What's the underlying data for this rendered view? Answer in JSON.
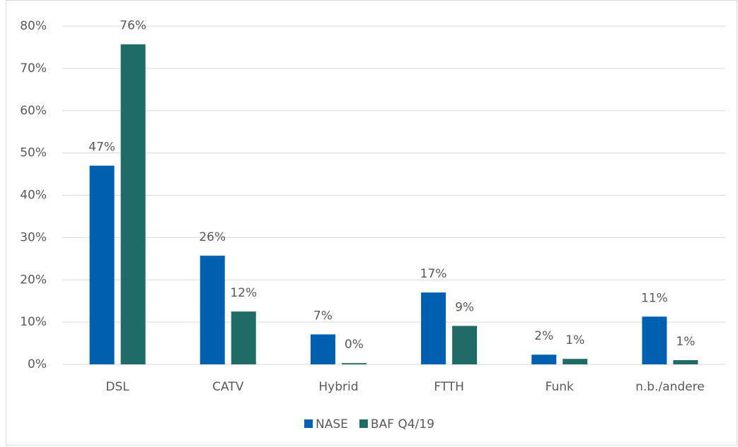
{
  "chart_data": {
    "type": "bar",
    "categories": [
      "DSL",
      "CATV",
      "Hybrid",
      "FTTH",
      "Funk",
      "n.b./andere"
    ],
    "series": [
      {
        "name": "NASE",
        "color": "#0060b0",
        "values": [
          47,
          25.7,
          7.1,
          17,
          2.3,
          11.3
        ],
        "value_labels": [
          "47%",
          "26%",
          "7%",
          "17%",
          "2%",
          "11%"
        ]
      },
      {
        "name": "BAF Q4/19",
        "color": "#1f6b66",
        "values": [
          75.7,
          12.5,
          0.3,
          9.1,
          1.3,
          1.0
        ],
        "value_labels": [
          "76%",
          "12%",
          "0%",
          "9%",
          "1%",
          "1%"
        ]
      }
    ],
    "ylim": [
      0,
      80
    ],
    "yticks": [
      {
        "value": 0,
        "label": "0%"
      },
      {
        "value": 10,
        "label": "10%"
      },
      {
        "value": 20,
        "label": "20%"
      },
      {
        "value": 30,
        "label": "30%"
      },
      {
        "value": 40,
        "label": "40%"
      },
      {
        "value": 50,
        "label": "50%"
      },
      {
        "value": 60,
        "label": "60%"
      },
      {
        "value": 70,
        "label": "70%"
      },
      {
        "value": 80,
        "label": "80%"
      }
    ],
    "grid": true,
    "legend": "bottom"
  }
}
